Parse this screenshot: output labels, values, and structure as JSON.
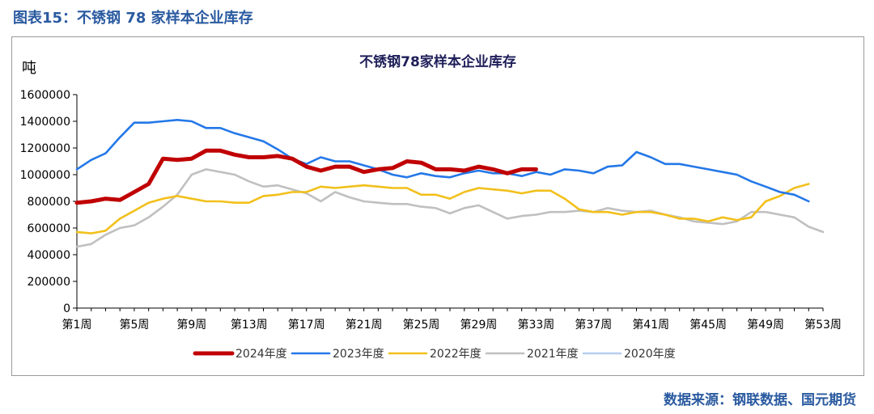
{
  "figure": {
    "caption": "图表15：不锈钢 78 家样本企业库存",
    "source": "数据来源：钢联数据、国元期货"
  },
  "colors": {
    "s2024": "#c00000",
    "s2023": "#2478e8",
    "s2022": "#f2c01c",
    "s2021": "#c0c0c0",
    "s2020": "#b8cdf0"
  },
  "chart_data": {
    "type": "line",
    "title": "不锈钢78家样本企业库存",
    "ylabel": "吨",
    "xlabel": "",
    "ylim": [
      0,
      1600000
    ],
    "xlim": [
      1,
      53
    ],
    "grid": false,
    "legend_position": "bottom",
    "yticks": [
      "0",
      "200000",
      "400000",
      "600000",
      "800000",
      "1000000",
      "1200000",
      "1400000",
      "1600000"
    ],
    "xticks": [
      "第1周",
      "第5周",
      "第9周",
      "第13周",
      "第17周",
      "第21周",
      "第25周",
      "第29周",
      "第33周",
      "第37周",
      "第41周",
      "第45周",
      "第49周",
      "第53周"
    ],
    "series": [
      {
        "name": "2024年度",
        "color": "#c00000",
        "width": 5,
        "values": [
          790000,
          800000,
          820000,
          810000,
          870000,
          930000,
          1120000,
          1110000,
          1120000,
          1180000,
          1180000,
          1150000,
          1130000,
          1130000,
          1140000,
          1120000,
          1060000,
          1030000,
          1060000,
          1060000,
          1020000,
          1040000,
          1050000,
          1100000,
          1090000,
          1040000,
          1040000,
          1030000,
          1060000,
          1040000,
          1010000,
          1040000,
          1040000
        ]
      },
      {
        "name": "2023年度",
        "color": "#2478e8",
        "width": 2.6,
        "values": [
          1040000,
          1110000,
          1160000,
          1280000,
          1390000,
          1390000,
          1400000,
          1410000,
          1400000,
          1350000,
          1350000,
          1310000,
          1280000,
          1250000,
          1190000,
          1120000,
          1080000,
          1130000,
          1100000,
          1100000,
          1070000,
          1040000,
          1000000,
          980000,
          1010000,
          990000,
          980000,
          1010000,
          1030000,
          1010000,
          1010000,
          990000,
          1020000,
          1000000,
          1040000,
          1030000,
          1010000,
          1060000,
          1070000,
          1170000,
          1130000,
          1080000,
          1080000,
          1060000,
          1040000,
          1020000,
          1000000,
          950000,
          910000,
          870000,
          850000,
          800000
        ]
      },
      {
        "name": "2022年度",
        "color": "#f2c01c",
        "width": 2.6,
        "values": [
          570000,
          560000,
          580000,
          670000,
          730000,
          790000,
          820000,
          840000,
          820000,
          800000,
          800000,
          790000,
          790000,
          840000,
          850000,
          870000,
          870000,
          910000,
          900000,
          910000,
          920000,
          910000,
          900000,
          900000,
          850000,
          850000,
          820000,
          870000,
          900000,
          890000,
          880000,
          860000,
          880000,
          880000,
          820000,
          740000,
          720000,
          720000,
          700000,
          720000,
          720000,
          700000,
          670000,
          670000,
          650000,
          680000,
          660000,
          680000,
          800000,
          840000,
          900000,
          930000
        ]
      },
      {
        "name": "2021年度",
        "color": "#c0c0c0",
        "width": 2.6,
        "values": [
          460000,
          480000,
          550000,
          600000,
          620000,
          680000,
          760000,
          850000,
          1000000,
          1040000,
          1020000,
          1000000,
          950000,
          910000,
          920000,
          890000,
          860000,
          800000,
          870000,
          830000,
          800000,
          790000,
          780000,
          780000,
          760000,
          750000,
          710000,
          750000,
          770000,
          720000,
          670000,
          690000,
          700000,
          720000,
          720000,
          730000,
          720000,
          750000,
          730000,
          720000,
          730000,
          700000,
          680000,
          650000,
          640000,
          630000,
          650000,
          720000,
          720000,
          700000,
          680000,
          610000,
          570000
        ]
      },
      {
        "name": "2020年度",
        "color": "#b8cdf0",
        "width": 2.6,
        "values": []
      }
    ]
  }
}
